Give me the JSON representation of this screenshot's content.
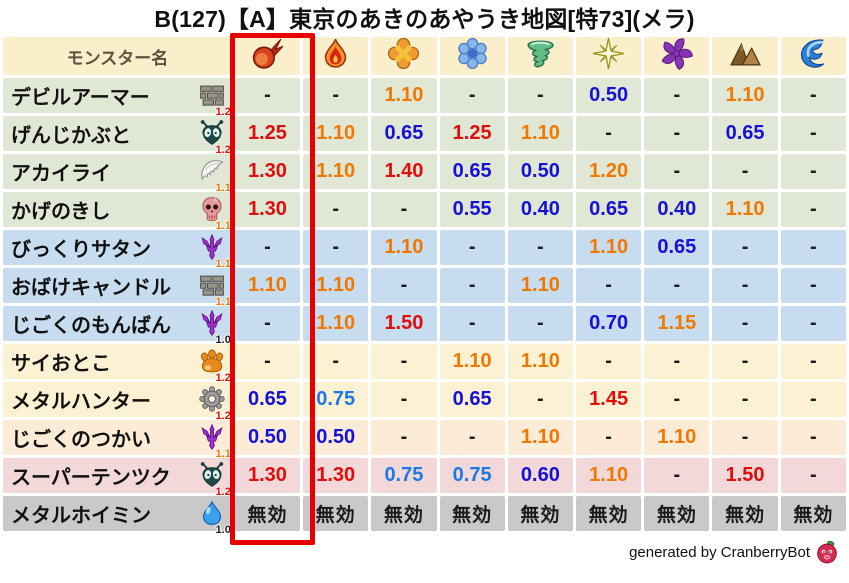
{
  "title": "B(127)【A】東京のあきのあやうき地図[特73](メラ)",
  "colors": {
    "header_bg": "#FAEECB",
    "header_text": "#5B5340",
    "highlight_border": "#E60000",
    "value_red": "#E00D0D",
    "value_orange": "#F07800",
    "value_light_blue": "#1E78E6",
    "value_dark_blue": "#1512D6",
    "value_black": "#1A1A1A",
    "group_green": "#E0E8D5",
    "group_blue": "#C8DCEF",
    "group_cream": "#FCF2D3",
    "group_peach": "#FBEBD7",
    "group_pink": "#F2D8D8",
    "group_gray": "#C9C9C9"
  },
  "table": {
    "name_header": "モンスター名",
    "highlighted_column": 0,
    "element_columns": [
      {
        "icon": "fireball-icon"
      },
      {
        "icon": "flame-icon"
      },
      {
        "icon": "burst-icon"
      },
      {
        "icon": "snowflake-icon"
      },
      {
        "icon": "tornado-icon"
      },
      {
        "icon": "spark-icon"
      },
      {
        "icon": "pinwheel-icon"
      },
      {
        "icon": "mountain-icon"
      },
      {
        "icon": "wave-icon"
      }
    ],
    "rows": [
      {
        "name": "デビルアーマー",
        "icon": "brick-icon",
        "modifier": "1.2",
        "group": "green",
        "values": [
          "-",
          "-",
          "1.10",
          "-",
          "-",
          "0.50",
          "-",
          "1.10",
          "-"
        ]
      },
      {
        "name": "げんじかぶと",
        "icon": "beetle-icon",
        "modifier": "1.2",
        "group": "green",
        "values": [
          "1.25",
          "1.10",
          "0.65",
          "1.25",
          "1.10",
          "-",
          "-",
          "0.65",
          "-"
        ]
      },
      {
        "name": "アカイライ",
        "icon": "wing-icon",
        "modifier": "1.1",
        "group": "green",
        "values": [
          "1.30",
          "1.10",
          "1.40",
          "0.65",
          "0.50",
          "1.20",
          "-",
          "-",
          "-"
        ]
      },
      {
        "name": "かげのきし",
        "icon": "skull-icon",
        "modifier": "1.1",
        "group": "green",
        "values": [
          "1.30",
          "-",
          "-",
          "0.55",
          "0.40",
          "0.65",
          "0.40",
          "1.10",
          "-"
        ]
      },
      {
        "name": "びっくりサタン",
        "icon": "trident-icon",
        "modifier": "1.1",
        "group": "blue",
        "values": [
          "-",
          "-",
          "1.10",
          "-",
          "-",
          "1.10",
          "0.65",
          "-",
          "-"
        ]
      },
      {
        "name": "おばけキャンドル",
        "icon": "brick-icon",
        "modifier": "1.1",
        "group": "blue",
        "values": [
          "1.10",
          "1.10",
          "-",
          "-",
          "1.10",
          "-",
          "-",
          "-",
          "-"
        ]
      },
      {
        "name": "じごくのもんばん",
        "icon": "trident-icon",
        "modifier": "1.0",
        "group": "blue",
        "values": [
          "-",
          "1.10",
          "1.50",
          "-",
          "-",
          "0.70",
          "1.15",
          "-",
          "-"
        ]
      },
      {
        "name": "サイおとこ",
        "icon": "paw-icon",
        "modifier": "1.2",
        "group": "cream",
        "values": [
          "-",
          "-",
          "-",
          "1.10",
          "1.10",
          "-",
          "-",
          "-",
          "-"
        ]
      },
      {
        "name": "メタルハンター",
        "icon": "gear-icon",
        "modifier": "1.2",
        "group": "cream",
        "values": [
          "0.65",
          "0.75",
          "-",
          "0.65",
          "-",
          "1.45",
          "-",
          "-",
          "-"
        ]
      },
      {
        "name": "じごくのつかい",
        "icon": "trident-icon",
        "modifier": "1.1",
        "group": "peach",
        "values": [
          "0.50",
          "0.50",
          "-",
          "-",
          "1.10",
          "-",
          "1.10",
          "-",
          "-"
        ]
      },
      {
        "name": "スーパーテンツク",
        "icon": "beetle-icon",
        "modifier": "1.2",
        "group": "pink",
        "values": [
          "1.30",
          "1.30",
          "0.75",
          "0.75",
          "0.60",
          "1.10",
          "-",
          "1.50",
          "-"
        ]
      },
      {
        "name": "メタルホイミン",
        "icon": "slime-icon",
        "modifier": "1.0",
        "group": "gray",
        "values": [
          "無効",
          "無効",
          "無効",
          "無効",
          "無効",
          "無効",
          "無効",
          "無効",
          "無効"
        ]
      }
    ]
  },
  "footer": {
    "text": "generated by CranberryBot",
    "icon": "cranberry-icon"
  },
  "chart_data": {
    "type": "table",
    "title": "B(127)【A】東京のあきのあやうき地図[特73](メラ)",
    "headers": [
      "モンスター名",
      "fireball",
      "flame",
      "burst",
      "snowflake",
      "tornado",
      "spark",
      "pinwheel",
      "mountain",
      "wave"
    ],
    "rows": [
      [
        "デビルアーマー",
        "-",
        "-",
        "1.10",
        "-",
        "-",
        "0.50",
        "-",
        "1.10",
        "-"
      ],
      [
        "げんじかぶと",
        "1.25",
        "1.10",
        "0.65",
        "1.25",
        "1.10",
        "-",
        "-",
        "0.65",
        "-"
      ],
      [
        "アカイライ",
        "1.30",
        "1.10",
        "1.40",
        "0.65",
        "0.50",
        "1.20",
        "-",
        "-",
        "-"
      ],
      [
        "かげのきし",
        "1.30",
        "-",
        "-",
        "0.55",
        "0.40",
        "0.65",
        "0.40",
        "1.10",
        "-"
      ],
      [
        "びっくりサタン",
        "-",
        "-",
        "1.10",
        "-",
        "-",
        "1.10",
        "0.65",
        "-",
        "-"
      ],
      [
        "おばけキャンドル",
        "1.10",
        "1.10",
        "-",
        "-",
        "1.10",
        "-",
        "-",
        "-",
        "-"
      ],
      [
        "じごくのもんばん",
        "-",
        "1.10",
        "1.50",
        "-",
        "-",
        "0.70",
        "1.15",
        "-",
        "-"
      ],
      [
        "サイおとこ",
        "-",
        "-",
        "-",
        "1.10",
        "1.10",
        "-",
        "-",
        "-",
        "-"
      ],
      [
        "メタルハンター",
        "0.65",
        "0.75",
        "-",
        "0.65",
        "-",
        "1.45",
        "-",
        "-",
        "-"
      ],
      [
        "じごくのつかい",
        "0.50",
        "0.50",
        "-",
        "-",
        "1.10",
        "-",
        "1.10",
        "-",
        "-"
      ],
      [
        "スーパーテンツク",
        "1.30",
        "1.30",
        "0.75",
        "0.75",
        "0.60",
        "1.10",
        "-",
        "1.50",
        "-"
      ],
      [
        "メタルホイミン",
        "無効",
        "無効",
        "無効",
        "無効",
        "無効",
        "無効",
        "無効",
        "無効",
        "無効"
      ]
    ]
  }
}
